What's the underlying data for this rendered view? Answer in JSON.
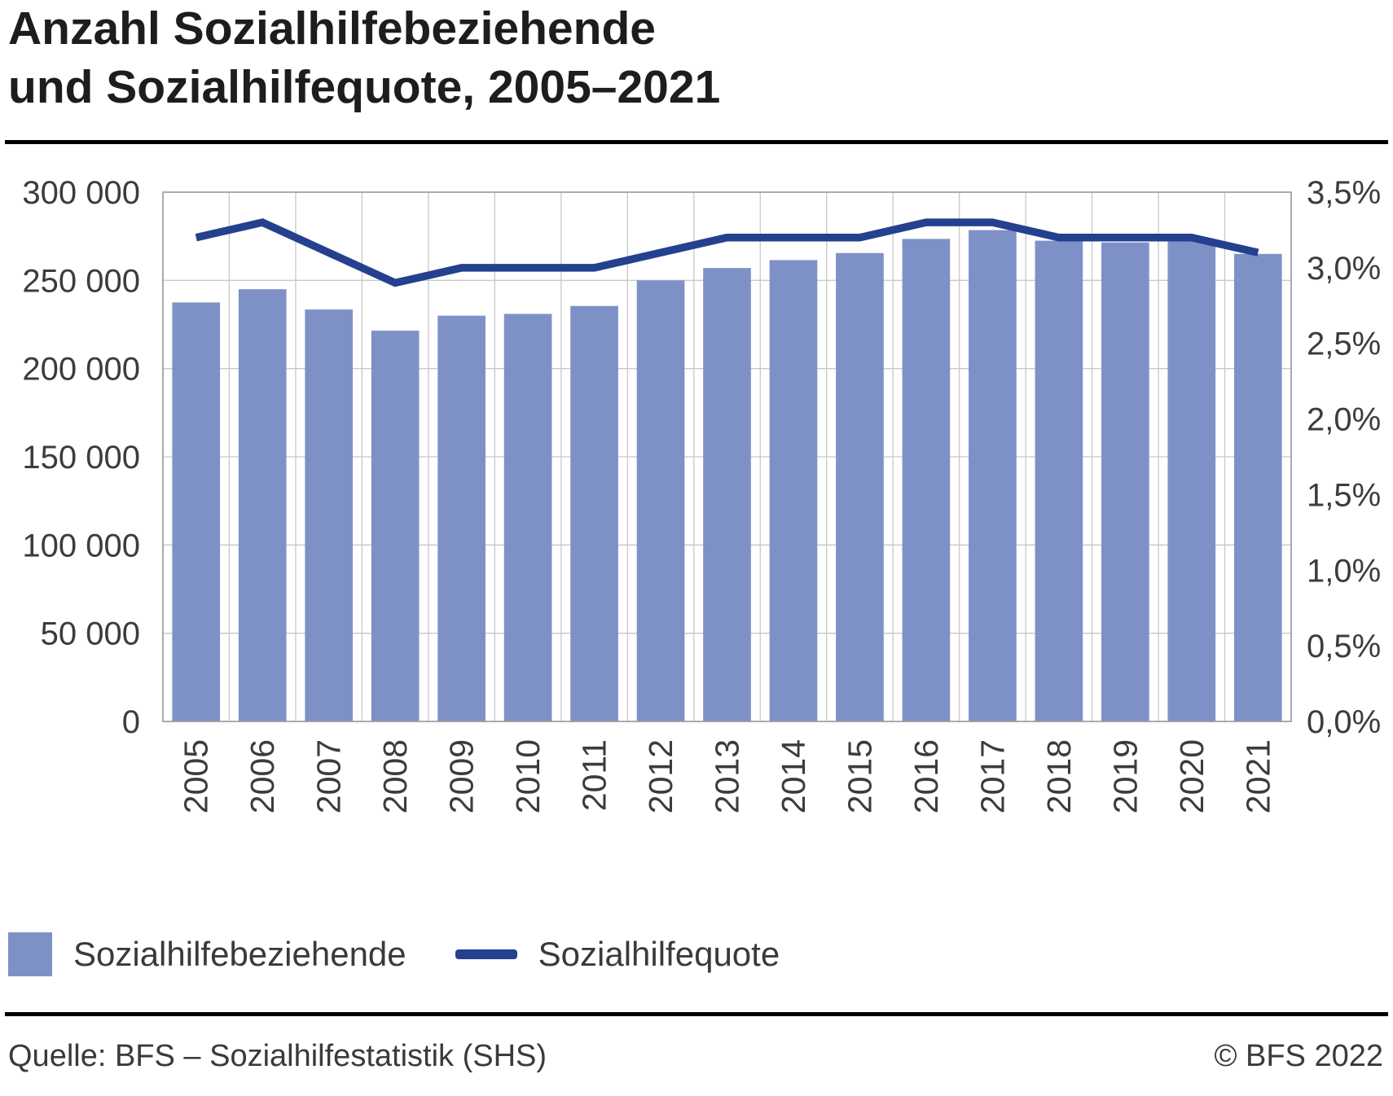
{
  "title": {
    "line1": "Anzahl Sozialhilfebeziehende",
    "line2": "und Sozialhilfequote, 2005–2021"
  },
  "chart_data": {
    "type": "bar",
    "subtype": "bar-and-line-dual-axis",
    "title": "Anzahl Sozialhilfebeziehende und Sozialhilfequote, 2005–2021",
    "categories": [
      "2005",
      "2006",
      "2007",
      "2008",
      "2009",
      "2010",
      "2011",
      "2012",
      "2013",
      "2014",
      "2015",
      "2016",
      "2017",
      "2018",
      "2019",
      "2020",
      "2021"
    ],
    "series": [
      {
        "name": "Sozialhilfebeziehende",
        "type": "bar",
        "axis": "left",
        "values": [
          237500,
          245000,
          233500,
          221500,
          230000,
          231000,
          235500,
          250000,
          257000,
          261500,
          265500,
          273500,
          278500,
          272500,
          271500,
          272500,
          265000
        ]
      },
      {
        "name": "Sozialhilfequote",
        "type": "line",
        "axis": "right",
        "values": [
          3.2,
          3.3,
          3.1,
          2.9,
          3.0,
          3.0,
          3.0,
          3.1,
          3.2,
          3.2,
          3.2,
          3.3,
          3.3,
          3.2,
          3.2,
          3.2,
          3.1
        ]
      }
    ],
    "left_axis": {
      "min": 0,
      "max": 300000,
      "step": 50000,
      "tick_labels": [
        "0",
        "50 000",
        "100 000",
        "150 000",
        "200 000",
        "250 000",
        "300 000"
      ]
    },
    "right_axis": {
      "min": 0,
      "max": 3.5,
      "step": 0.5,
      "tick_labels": [
        "0,0%",
        "0,5%",
        "1,0%",
        "1,5%",
        "2,0%",
        "2,5%",
        "3,0%",
        "3,5%"
      ]
    },
    "grid": true,
    "legend_position": "bottom"
  },
  "footer": {
    "source": "Quelle: BFS – Sozialhilfestatistik (SHS)",
    "copyright": "© BFS 2022"
  },
  "colors": {
    "bar": "#7e91c7",
    "line": "#24408f",
    "grid": "#c8c8c8",
    "axis": "#9a9a9a",
    "text": "#3c3c3c",
    "title": "#1d1d1b"
  }
}
